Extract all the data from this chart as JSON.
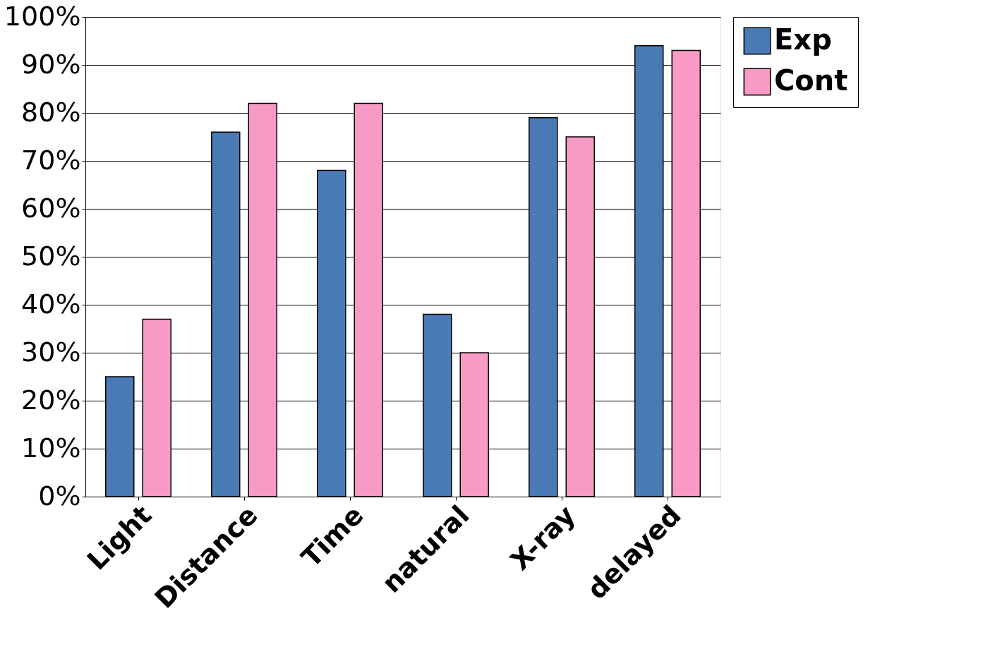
{
  "chart_data": {
    "type": "bar",
    "categories": [
      "Light",
      "Distance",
      "Time",
      "natural",
      "X-ray",
      "delayed"
    ],
    "series": [
      {
        "name": "Exp",
        "color": "#4a7ab5",
        "values": [
          25,
          76,
          68,
          38,
          79,
          94
        ]
      },
      {
        "name": "Cont",
        "color": "#f79ac5",
        "values": [
          37,
          82,
          82,
          30,
          75,
          93
        ]
      }
    ],
    "ylim": [
      0,
      100
    ],
    "yticks": [
      {
        "value": 0,
        "label": "0%"
      },
      {
        "value": 10,
        "label": "10%"
      },
      {
        "value": 20,
        "label": "20%"
      },
      {
        "value": 30,
        "label": "30%"
      },
      {
        "value": 40,
        "label": "40%"
      },
      {
        "value": 50,
        "label": "50%"
      },
      {
        "value": 60,
        "label": "60%"
      },
      {
        "value": 70,
        "label": "70%"
      },
      {
        "value": 80,
        "label": "80%"
      },
      {
        "value": 90,
        "label": "90%"
      },
      {
        "value": 100,
        "label": "100%"
      }
    ],
    "grid": "y",
    "legend": "right"
  }
}
